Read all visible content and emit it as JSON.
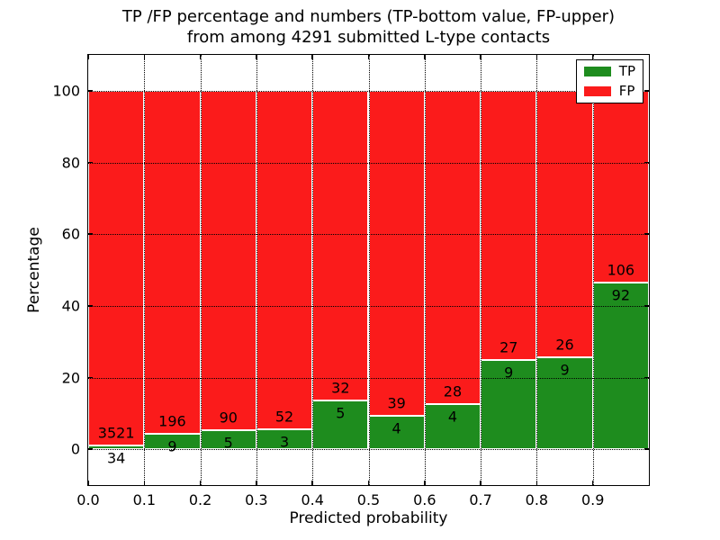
{
  "chart_data": {
    "type": "bar",
    "stacked": true,
    "normalized_to_percent": true,
    "title": "TP /FP percentage and numbers (TP-bottom value, FP-upper)\nfrom among 4291 submitted L-type contacts",
    "xlabel": "Predicted probability",
    "ylabel": "Percentage",
    "xlim": [
      0.0,
      1.0
    ],
    "ylim": [
      -10,
      110
    ],
    "xticks": [
      {
        "v": 0.0,
        "label": "0.0"
      },
      {
        "v": 0.1,
        "label": "0.1"
      },
      {
        "v": 0.2,
        "label": "0.2"
      },
      {
        "v": 0.3,
        "label": "0.3"
      },
      {
        "v": 0.4,
        "label": "0.4"
      },
      {
        "v": 0.5,
        "label": "0.5"
      },
      {
        "v": 0.6,
        "label": "0.6"
      },
      {
        "v": 0.7,
        "label": "0.7"
      },
      {
        "v": 0.8,
        "label": "0.8"
      },
      {
        "v": 0.9,
        "label": "0.9"
      }
    ],
    "yticks": [
      {
        "v": 0,
        "label": "0"
      },
      {
        "v": 20,
        "label": "20"
      },
      {
        "v": 40,
        "label": "40"
      },
      {
        "v": 60,
        "label": "60"
      },
      {
        "v": 80,
        "label": "80"
      },
      {
        "v": 100,
        "label": "100"
      }
    ],
    "bin_edges": [
      0.0,
      0.1,
      0.2,
      0.3,
      0.4,
      0.5,
      0.6,
      0.7,
      0.8,
      0.9,
      1.0
    ],
    "series": [
      {
        "name": "TP",
        "color": "#1e8c1e",
        "counts": [
          34,
          9,
          5,
          3,
          5,
          4,
          4,
          9,
          9,
          92
        ]
      },
      {
        "name": "FP",
        "color": "#fb1b1b",
        "counts": [
          3521,
          196,
          90,
          52,
          32,
          39,
          28,
          27,
          26,
          106
        ]
      }
    ],
    "tp_percent_of_bin": [
      0.96,
      4.39,
      5.26,
      5.45,
      13.51,
      9.3,
      12.5,
      25.0,
      25.71,
      46.46
    ],
    "fp_percent_of_bin": [
      99.04,
      95.61,
      94.74,
      94.55,
      86.49,
      90.7,
      87.5,
      75.0,
      74.29,
      53.54
    ],
    "total_contacts": 4291,
    "legend": {
      "position": "upper right",
      "entries": [
        {
          "label": "TP",
          "color": "#1e8c1e"
        },
        {
          "label": "FP",
          "color": "#fb1b1b"
        }
      ]
    },
    "grid": {
      "style": "dotted",
      "color": "#000000",
      "drawn_above_bars": true
    }
  }
}
